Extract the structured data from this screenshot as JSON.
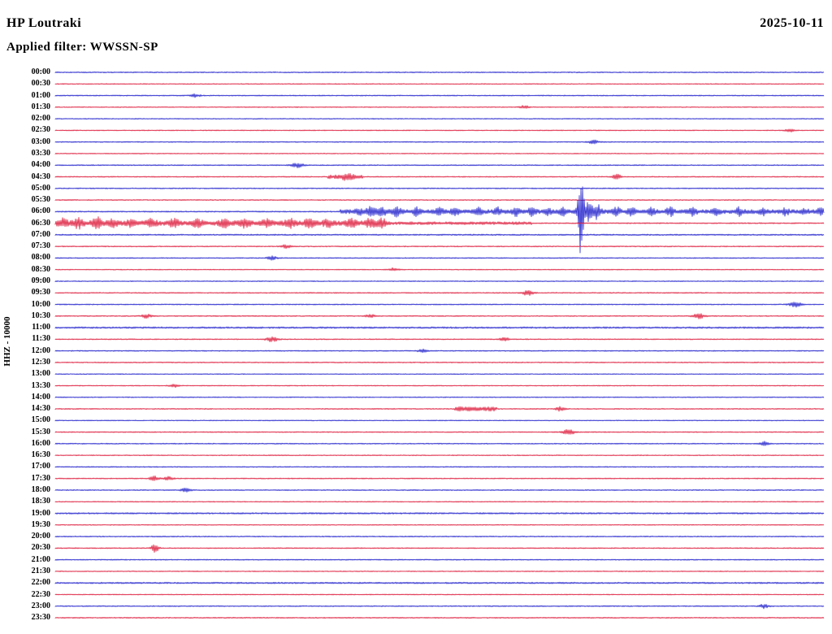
{
  "header": {
    "station": "HP Loutraki",
    "date": "2025-10-11",
    "filter_line": "Applied filter: WWSSN-SP"
  },
  "chart_data": {
    "type": "line",
    "subtype": "helicorder",
    "title": "HP Loutraki",
    "date": "2025-10-11",
    "filter": "WWSSN-SP",
    "channel_label": "HHZ - 10000",
    "row_minutes": 30,
    "grid": false,
    "legend": "none",
    "colors": {
      "b": "#2222cc",
      "r": "#dd1c3c"
    },
    "rows": [
      {
        "t": "00:00",
        "c": "b",
        "n": 0.7
      },
      {
        "t": "00:30",
        "c": "r",
        "n": 0.6
      },
      {
        "t": "01:00",
        "c": "b",
        "n": 0.7,
        "spk": [
          [
            0.182,
            2,
            4
          ]
        ]
      },
      {
        "t": "01:30",
        "c": "r",
        "n": 0.6,
        "spk": [
          [
            0.61,
            2,
            4
          ]
        ]
      },
      {
        "t": "02:00",
        "c": "b",
        "n": 0.6
      },
      {
        "t": "02:30",
        "c": "r",
        "n": 0.6,
        "spk": [
          [
            0.956,
            2,
            4
          ]
        ]
      },
      {
        "t": "03:00",
        "c": "b",
        "n": 0.7,
        "spk": [
          [
            0.7,
            2.5,
            4
          ]
        ]
      },
      {
        "t": "03:30",
        "c": "r",
        "n": 0.6
      },
      {
        "t": "04:00",
        "c": "b",
        "n": 0.7,
        "spk": [
          [
            0.315,
            3,
            5
          ]
        ]
      },
      {
        "t": "04:30",
        "c": "r",
        "n": 0.7,
        "seg": [
          [
            0.355,
            0.4,
            1.8
          ]
        ],
        "spk": [
          [
            0.38,
            3,
            5
          ],
          [
            0.73,
            5,
            3
          ]
        ]
      },
      {
        "t": "05:00",
        "c": "b",
        "n": 0.7
      },
      {
        "t": "05:30",
        "c": "r",
        "n": 0.7
      },
      {
        "t": "06:00",
        "c": "b",
        "n": 0.8,
        "seg": [
          [
            0.37,
            1.0,
            1.8
          ]
        ],
        "spk": [
          [
            0.395,
            3,
            3
          ],
          [
            0.41,
            5,
            4
          ],
          [
            0.425,
            4,
            4
          ],
          [
            0.445,
            5,
            4
          ],
          [
            0.47,
            4,
            3
          ],
          [
            0.5,
            4,
            3
          ],
          [
            0.52,
            3.5,
            3
          ],
          [
            0.55,
            4,
            3
          ],
          [
            0.575,
            4,
            3
          ],
          [
            0.6,
            5,
            3
          ],
          [
            0.62,
            4,
            3
          ],
          [
            0.64,
            4,
            3
          ],
          [
            0.66,
            5,
            3
          ],
          [
            0.684,
            55,
            2.5
          ],
          [
            0.695,
            12,
            3
          ],
          [
            0.705,
            8,
            3
          ],
          [
            0.73,
            5,
            3
          ],
          [
            0.75,
            4,
            3
          ],
          [
            0.775,
            4,
            3
          ],
          [
            0.8,
            4.5,
            3
          ],
          [
            0.83,
            4,
            3
          ],
          [
            0.86,
            3.5,
            3
          ],
          [
            0.89,
            4,
            3
          ],
          [
            0.92,
            3.5,
            3
          ],
          [
            0.95,
            3.5,
            3
          ],
          [
            0.975,
            3,
            3
          ],
          [
            0.995,
            3,
            3
          ]
        ]
      },
      {
        "t": "06:30",
        "c": "r",
        "n": 0.8,
        "seg": [
          [
            0.0,
            0.43,
            2.2
          ],
          [
            0.43,
            0.62,
            1.1
          ]
        ],
        "spk": [
          [
            0.01,
            4,
            4
          ],
          [
            0.03,
            5,
            4
          ],
          [
            0.055,
            6,
            4
          ],
          [
            0.075,
            5,
            4
          ],
          [
            0.1,
            4,
            4
          ],
          [
            0.125,
            4,
            4
          ],
          [
            0.155,
            4,
            4
          ],
          [
            0.185,
            3.5,
            4
          ],
          [
            0.22,
            4,
            4
          ],
          [
            0.245,
            4,
            5
          ],
          [
            0.275,
            3.5,
            4
          ],
          [
            0.305,
            4,
            4
          ],
          [
            0.33,
            4.5,
            4
          ],
          [
            0.355,
            4,
            4
          ],
          [
            0.385,
            4,
            4
          ],
          [
            0.41,
            4.5,
            4
          ],
          [
            0.425,
            4,
            4
          ]
        ]
      },
      {
        "t": "07:00",
        "c": "b",
        "n": 0.9
      },
      {
        "t": "07:30",
        "c": "r",
        "n": 0.7,
        "spk": [
          [
            0.3,
            2,
            4
          ]
        ]
      },
      {
        "t": "08:00",
        "c": "b",
        "n": 0.7,
        "spk": [
          [
            0.282,
            2.5,
            4
          ]
        ]
      },
      {
        "t": "08:30",
        "c": "r",
        "n": 0.6,
        "spk": [
          [
            0.44,
            2,
            4
          ]
        ]
      },
      {
        "t": "09:00",
        "c": "b",
        "n": 0.6
      },
      {
        "t": "09:30",
        "c": "r",
        "n": 0.7,
        "spk": [
          [
            0.615,
            3,
            5
          ]
        ]
      },
      {
        "t": "10:00",
        "c": "b",
        "n": 0.7,
        "spk": [
          [
            0.963,
            3.5,
            5
          ]
        ]
      },
      {
        "t": "10:30",
        "c": "r",
        "n": 0.7,
        "spk": [
          [
            0.118,
            2.5,
            4
          ],
          [
            0.41,
            2,
            4
          ],
          [
            0.837,
            3,
            5
          ]
        ]
      },
      {
        "t": "11:00",
        "c": "b",
        "n": 1.1
      },
      {
        "t": "11:30",
        "c": "r",
        "n": 0.7,
        "spk": [
          [
            0.282,
            3,
            5
          ],
          [
            0.585,
            2.5,
            4
          ]
        ]
      },
      {
        "t": "12:00",
        "c": "b",
        "n": 0.7,
        "spk": [
          [
            0.478,
            2,
            4
          ]
        ]
      },
      {
        "t": "12:30",
        "c": "r",
        "n": 0.7
      },
      {
        "t": "13:00",
        "c": "b",
        "n": 0.6
      },
      {
        "t": "13:30",
        "c": "r",
        "n": 0.6,
        "spk": [
          [
            0.155,
            2,
            4
          ]
        ]
      },
      {
        "t": "14:00",
        "c": "b",
        "n": 0.6
      },
      {
        "t": "14:30",
        "c": "r",
        "n": 0.7,
        "seg": [
          [
            0.52,
            0.575,
            2.2
          ]
        ],
        "spk": [
          [
            0.657,
            2.5,
            4
          ]
        ]
      },
      {
        "t": "15:00",
        "c": "b",
        "n": 0.6
      },
      {
        "t": "15:30",
        "c": "r",
        "n": 0.7,
        "spk": [
          [
            0.668,
            3.5,
            5
          ]
        ]
      },
      {
        "t": "16:00",
        "c": "b",
        "n": 0.7,
        "spk": [
          [
            0.922,
            2.5,
            4
          ]
        ]
      },
      {
        "t": "16:30",
        "c": "r",
        "n": 0.6
      },
      {
        "t": "17:00",
        "c": "b",
        "n": 0.7
      },
      {
        "t": "17:30",
        "c": "r",
        "n": 0.7,
        "spk": [
          [
            0.129,
            3,
            4
          ],
          [
            0.147,
            2.5,
            4
          ]
        ]
      },
      {
        "t": "18:00",
        "c": "b",
        "n": 0.7,
        "spk": [
          [
            0.17,
            2.5,
            4
          ]
        ]
      },
      {
        "t": "18:30",
        "c": "r",
        "n": 0.6
      },
      {
        "t": "19:00",
        "c": "b",
        "n": 1.0
      },
      {
        "t": "19:30",
        "c": "r",
        "n": 0.6
      },
      {
        "t": "20:00",
        "c": "b",
        "n": 0.7
      },
      {
        "t": "20:30",
        "c": "r",
        "n": 0.7,
        "spk": [
          [
            0.13,
            6,
            3
          ]
        ]
      },
      {
        "t": "21:00",
        "c": "b",
        "n": 0.7
      },
      {
        "t": "21:30",
        "c": "r",
        "n": 0.6
      },
      {
        "t": "22:00",
        "c": "b",
        "n": 1.0
      },
      {
        "t": "22:30",
        "c": "r",
        "n": 0.6
      },
      {
        "t": "23:00",
        "c": "b",
        "n": 0.7,
        "spk": [
          [
            0.922,
            2.5,
            4
          ]
        ]
      },
      {
        "t": "23:30",
        "c": "r",
        "n": 0.7
      }
    ]
  }
}
